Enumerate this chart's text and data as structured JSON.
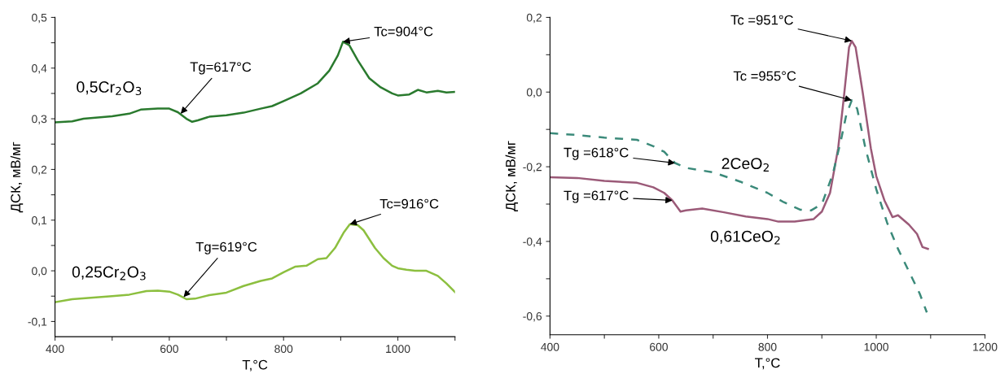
{
  "chart_data": [
    {
      "type": "line",
      "xlabel": "T,°C",
      "ylabel": "ДСК, мВ/мг",
      "xlim": [
        400,
        1100
      ],
      "ylim": [
        -0.13,
        0.5
      ],
      "xticks": [
        400,
        {
          "value": 500,
          "label": null
        },
        600,
        {
          "value": 700,
          "label": null
        },
        800,
        {
          "value": 900,
          "label": null
        },
        1000,
        {
          "value": 1100,
          "label": null
        }
      ],
      "yticks": [
        {
          "value": -0.1,
          "label": "-0,1"
        },
        {
          "value": -0.05,
          "label": null
        },
        {
          "value": 0.0,
          "label": "0,0"
        },
        {
          "value": 0.05,
          "label": null
        },
        {
          "value": 0.1,
          "label": "0,1"
        },
        {
          "value": 0.15,
          "label": null
        },
        {
          "value": 0.2,
          "label": "0,2"
        },
        {
          "value": 0.25,
          "label": null
        },
        {
          "value": 0.3,
          "label": "0,3"
        },
        {
          "value": 0.35,
          "label": null
        },
        {
          "value": 0.4,
          "label": "0,4"
        },
        {
          "value": 0.45,
          "label": null
        },
        {
          "value": 0.5,
          "label": "0,5"
        }
      ],
      "grid": false,
      "legend": false,
      "line_style": "solid",
      "marker": "none",
      "series": [
        {
          "name": "0,5Cr$_{2}$O$_{3}$",
          "color": "#2a7a2e",
          "x": [
            400,
            430,
            450,
            500,
            530,
            550,
            580,
            600,
            615,
            630,
            640,
            650,
            670,
            700,
            730,
            760,
            780,
            800,
            830,
            860,
            880,
            895,
            904,
            915,
            930,
            950,
            970,
            990,
            1000,
            1020,
            1035,
            1050,
            1070,
            1085,
            1100
          ],
          "values": [
            0.293,
            0.295,
            0.3,
            0.305,
            0.31,
            0.318,
            0.32,
            0.32,
            0.313,
            0.3,
            0.294,
            0.297,
            0.304,
            0.307,
            0.312,
            0.32,
            0.325,
            0.335,
            0.35,
            0.37,
            0.395,
            0.425,
            0.452,
            0.445,
            0.415,
            0.38,
            0.362,
            0.35,
            0.346,
            0.348,
            0.357,
            0.352,
            0.355,
            0.352,
            0.353
          ]
        },
        {
          "name": "0,25Cr$_{2}$O$_{3}$",
          "color": "#8cbf3f",
          "x": [
            400,
            430,
            500,
            530,
            560,
            580,
            600,
            615,
            630,
            645,
            670,
            700,
            730,
            760,
            780,
            800,
            820,
            840,
            860,
            875,
            890,
            905,
            916,
            930,
            940,
            960,
            975,
            990,
            1000,
            1015,
            1030,
            1050,
            1070,
            1085,
            1100
          ],
          "values": [
            -0.062,
            -0.056,
            -0.05,
            -0.047,
            -0.04,
            -0.039,
            -0.041,
            -0.047,
            -0.056,
            -0.055,
            -0.048,
            -0.043,
            -0.03,
            -0.02,
            -0.015,
            -0.003,
            0.008,
            0.01,
            0.023,
            0.025,
            0.045,
            0.075,
            0.092,
            0.09,
            0.08,
            0.045,
            0.025,
            0.01,
            0.005,
            0.002,
            0.0,
            0.0,
            -0.01,
            -0.025,
            -0.042
          ]
        }
      ],
      "annotations": [
        {
          "text": "Tg=617°C",
          "x": 620,
          "y": 0.31
        },
        {
          "text": "Tc=904°C",
          "x": 904,
          "y": 0.452
        },
        {
          "text": "Tg=619°C",
          "x": 625,
          "y": -0.052
        },
        {
          "text": "Tc=916°C",
          "x": 916,
          "y": 0.092
        }
      ]
    },
    {
      "type": "line",
      "xlabel": "T,°C",
      "ylabel": "ДСК, мВ/мг",
      "xlim": [
        400,
        1200
      ],
      "ylim": [
        -0.65,
        0.2
      ],
      "xticks": [
        400,
        {
          "value": 500,
          "label": null
        },
        600,
        {
          "value": 700,
          "label": null
        },
        800,
        {
          "value": 900,
          "label": null
        },
        1000,
        {
          "value": 1100,
          "label": null
        },
        1200
      ],
      "yticks": [
        {
          "value": -0.6,
          "label": "-0,6"
        },
        {
          "value": -0.5,
          "label": null
        },
        {
          "value": -0.4,
          "label": "-0,4"
        },
        {
          "value": -0.3,
          "label": null
        },
        {
          "value": -0.2,
          "label": "-0,2"
        },
        {
          "value": -0.1,
          "label": null
        },
        {
          "value": 0.0,
          "label": "0,0"
        },
        {
          "value": 0.1,
          "label": null
        },
        {
          "value": 0.2,
          "label": "0,2"
        }
      ],
      "grid": false,
      "legend": false,
      "marker": "none",
      "series": [
        {
          "name": "0,61CeO$_{2}$",
          "color": "#9b5a78",
          "line_style": "solid",
          "x": [
            400,
            450,
            500,
            560,
            590,
            610,
            625,
            640,
            650,
            680,
            720,
            760,
            800,
            820,
            850,
            870,
            885,
            900,
            915,
            930,
            940,
            950,
            955,
            962,
            975,
            990,
            1000,
            1015,
            1030,
            1040,
            1060,
            1075,
            1085,
            1095
          ],
          "values": [
            -0.228,
            -0.23,
            -0.238,
            -0.243,
            -0.255,
            -0.27,
            -0.29,
            -0.32,
            -0.317,
            -0.312,
            -0.322,
            -0.333,
            -0.34,
            -0.347,
            -0.347,
            -0.343,
            -0.34,
            -0.32,
            -0.27,
            -0.15,
            -0.02,
            0.12,
            0.137,
            0.12,
            0.0,
            -0.15,
            -0.225,
            -0.29,
            -0.335,
            -0.33,
            -0.355,
            -0.38,
            -0.415,
            -0.42
          ]
        },
        {
          "name": "2CeO$_{2}$",
          "color": "#3b8a7a",
          "line_style": "dashed",
          "x": [
            400,
            450,
            500,
            560,
            590,
            610,
            630,
            650,
            700,
            750,
            800,
            830,
            860,
            880,
            900,
            920,
            935,
            945,
            955,
            965,
            980,
            1000,
            1020,
            1040,
            1060,
            1080,
            1093
          ],
          "values": [
            -0.11,
            -0.115,
            -0.122,
            -0.128,
            -0.145,
            -0.16,
            -0.19,
            -0.203,
            -0.215,
            -0.24,
            -0.27,
            -0.295,
            -0.315,
            -0.317,
            -0.3,
            -0.22,
            -0.13,
            -0.06,
            -0.022,
            -0.045,
            -0.15,
            -0.26,
            -0.35,
            -0.42,
            -0.48,
            -0.54,
            -0.59
          ]
        }
      ],
      "annotations": [
        {
          "text": "Tc =951°C",
          "x": 955,
          "y": 0.137
        },
        {
          "text": "Tc =955°C",
          "x": 955,
          "y": -0.022
        },
        {
          "text": "Tg =618°C",
          "x": 630,
          "y": -0.19
        },
        {
          "text": "Tg =617°C",
          "x": 625,
          "y": -0.29
        }
      ]
    }
  ]
}
